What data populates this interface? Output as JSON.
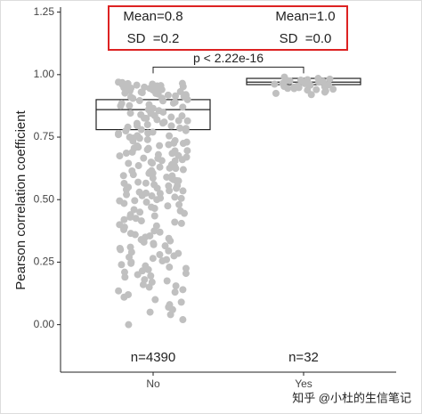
{
  "chart_data": {
    "type": "box",
    "y_label": "Pearson correlation coefficient",
    "categories": [
      "No",
      "Yes"
    ],
    "q1": [
      0.78,
      0.96
    ],
    "median": [
      0.86,
      0.97
    ],
    "q3": [
      0.9,
      0.985
    ],
    "points": [
      [
        0.97,
        0.965,
        0.96,
        0.955,
        0.95,
        0.945,
        0.94,
        0.935,
        0.93,
        0.925,
        0.92,
        0.915,
        0.91,
        0.9,
        0.89,
        0.88,
        0.87,
        0.86,
        0.85,
        0.84,
        0.83,
        0.82,
        0.81,
        0.8,
        0.79,
        0.78,
        0.77,
        0.76,
        0.75,
        0.74,
        0.73,
        0.72,
        0.71,
        0.7,
        0.69,
        0.68,
        0.67,
        0.66,
        0.65,
        0.64,
        0.63,
        0.62,
        0.61,
        0.6,
        0.59,
        0.58,
        0.57,
        0.56,
        0.55,
        0.54,
        0.53,
        0.52,
        0.51,
        0.5,
        0.49,
        0.48,
        0.47,
        0.46,
        0.45,
        0.44,
        0.43,
        0.42,
        0.41,
        0.4,
        0.39,
        0.38,
        0.37,
        0.36,
        0.35,
        0.34,
        0.33,
        0.32,
        0.31,
        0.3,
        0.29,
        0.28,
        0.27,
        0.26,
        0.25,
        0.24,
        0.23,
        0.22,
        0.21,
        0.2,
        0.19,
        0.18,
        0.17,
        0.16,
        0.15,
        0.14,
        0.13,
        0.12,
        0.1,
        0.08,
        0.06,
        0.04,
        0.02,
        0.0,
        0.968,
        0.962,
        0.958,
        0.952,
        0.948,
        0.942,
        0.938,
        0.932,
        0.928,
        0.922,
        0.918,
        0.912,
        0.905,
        0.895,
        0.885,
        0.875,
        0.865,
        0.855,
        0.845,
        0.835,
        0.825,
        0.815,
        0.805,
        0.795,
        0.785,
        0.775,
        0.765,
        0.755,
        0.745,
        0.735,
        0.725,
        0.715,
        0.705,
        0.695,
        0.685,
        0.675,
        0.665,
        0.655,
        0.645,
        0.635,
        0.625,
        0.615,
        0.605,
        0.595,
        0.585,
        0.575,
        0.565,
        0.555,
        0.545,
        0.535,
        0.525,
        0.515,
        0.505,
        0.495,
        0.485,
        0.475,
        0.465,
        0.455,
        0.445,
        0.435,
        0.425,
        0.415,
        0.405,
        0.395,
        0.385,
        0.375,
        0.365,
        0.355,
        0.345,
        0.335,
        0.325,
        0.315,
        0.305,
        0.295,
        0.285,
        0.275,
        0.265,
        0.255,
        0.245,
        0.235,
        0.225,
        0.215,
        0.205,
        0.195,
        0.175,
        0.155,
        0.135,
        0.11,
        0.09,
        0.07,
        0.05,
        0.964,
        0.956,
        0.946,
        0.936,
        0.926,
        0.916,
        0.906,
        0.896,
        0.886,
        0.876,
        0.866,
        0.856,
        0.846,
        0.836,
        0.826,
        0.816,
        0.806,
        0.796,
        0.786,
        0.776,
        0.766,
        0.756,
        0.746,
        0.736,
        0.726,
        0.716,
        0.706,
        0.696,
        0.686,
        0.676,
        0.666,
        0.656,
        0.646,
        0.636,
        0.626,
        0.616,
        0.606,
        0.596,
        0.586,
        0.576,
        0.566,
        0.556,
        0.546,
        0.536,
        0.526,
        0.516,
        0.506,
        0.496
      ],
      [
        0.99,
        0.985,
        0.98,
        0.978,
        0.975,
        0.972,
        0.97,
        0.968,
        0.966,
        0.964,
        0.962,
        0.96,
        0.958,
        0.955,
        0.952,
        0.95,
        0.948,
        0.945,
        0.942,
        0.94,
        0.935,
        0.93,
        0.925,
        0.92,
        0.982,
        0.976,
        0.971,
        0.965,
        0.959,
        0.953,
        0.944,
        0.938
      ]
    ],
    "n_labels": [
      "n=4390",
      "n=32"
    ],
    "stat_labels": [
      [
        "Mean=0.8",
        "SD  =0.2"
      ],
      [
        "Mean=1.0",
        "SD  =0.0"
      ]
    ],
    "p_label": "p < 2.22e-16",
    "bracket_y": 1.03,
    "watermark": "知乎 @小杜的生信笔记",
    "point_color": "#c0c0c0",
    "ylim": [
      -0.19,
      1.27
    ],
    "yticks": [
      {
        "value": 0,
        "label": "0.00"
      },
      0.25,
      {
        "value": 0.5,
        "label": "0.50"
      },
      0.75,
      {
        "value": 1,
        "label": "1.00"
      },
      1.25
    ]
  }
}
